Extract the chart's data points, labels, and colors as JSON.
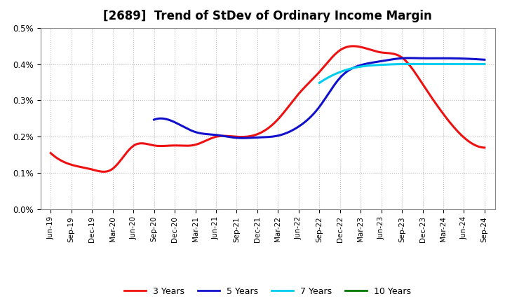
{
  "title": "[2689]  Trend of StDev of Ordinary Income Margin",
  "title_fontsize": 12,
  "background_color": "#ffffff",
  "plot_bg_color": "#ffffff",
  "grid_color": "#bbbbbb",
  "ylim": [
    0.0,
    0.005
  ],
  "ytick_labels": [
    "0.0%",
    "0.1%",
    "0.2%",
    "0.3%",
    "0.4%",
    "0.5%"
  ],
  "ytick_values": [
    0.0,
    0.001,
    0.002,
    0.003,
    0.004,
    0.005
  ],
  "x_labels": [
    "Jun-19",
    "Sep-19",
    "Dec-19",
    "Mar-20",
    "Jun-20",
    "Sep-20",
    "Dec-20",
    "Mar-21",
    "Jun-21",
    "Sep-21",
    "Dec-21",
    "Mar-22",
    "Jun-22",
    "Sep-22",
    "Dec-22",
    "Mar-23",
    "Jun-23",
    "Sep-23",
    "Dec-23",
    "Mar-24",
    "Jun-24",
    "Sep-24"
  ],
  "series": {
    "3 Years": {
      "color": "#ee1111",
      "values": [
        0.00155,
        0.00123,
        0.0011,
        0.00112,
        0.00175,
        0.00176,
        0.00176,
        0.00178,
        0.002,
        0.002,
        0.00207,
        0.00248,
        0.00318,
        0.00378,
        0.00438,
        0.00447,
        0.00432,
        0.00418,
        0.00345,
        0.00263,
        0.00198,
        0.0017
      ]
    },
    "5 Years": {
      "color": "#1111cc",
      "values": [
        null,
        null,
        null,
        null,
        null,
        0.00247,
        0.0024,
        0.00213,
        0.00205,
        0.00197,
        0.00198,
        0.00203,
        0.00228,
        0.00282,
        0.00362,
        0.00397,
        0.00408,
        0.00416,
        0.00416,
        0.00416,
        0.00415,
        0.00412
      ]
    },
    "7 Years": {
      "color": "#00ccee",
      "values": [
        null,
        null,
        null,
        null,
        null,
        null,
        null,
        null,
        null,
        null,
        null,
        null,
        null,
        0.00348,
        0.00378,
        0.00393,
        0.00398,
        0.004,
        0.004,
        0.004,
        0.004,
        0.004
      ]
    },
    "10 Years": {
      "color": "#007700",
      "values": [
        null,
        null,
        null,
        null,
        null,
        null,
        null,
        null,
        null,
        null,
        null,
        null,
        null,
        null,
        null,
        null,
        null,
        null,
        null,
        null,
        null,
        null
      ]
    }
  },
  "legend_entries": [
    "3 Years",
    "5 Years",
    "7 Years",
    "10 Years"
  ],
  "legend_colors": [
    "#ee1111",
    "#1111cc",
    "#00ccee",
    "#007700"
  ]
}
